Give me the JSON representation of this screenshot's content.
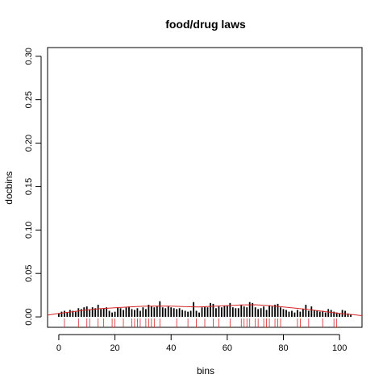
{
  "chart_data": {
    "type": "bar",
    "title": "food/drug laws",
    "xlabel": "bins",
    "ylabel": "docbins",
    "xlim": [
      -4,
      108
    ],
    "ylim": [
      -0.012,
      0.31
    ],
    "xticks": [
      0,
      20,
      40,
      60,
      80,
      100
    ],
    "yticks": [
      0.0,
      0.05,
      0.1,
      0.15,
      0.2,
      0.25,
      0.3
    ],
    "xtick_labels": [
      "0",
      "20",
      "40",
      "60",
      "80",
      "100"
    ],
    "ytick_labels": [
      "0.00",
      "0.05",
      "0.10",
      "0.15",
      "0.20",
      "0.25",
      "0.30"
    ],
    "grid": false,
    "legend": "none",
    "colors": {
      "bars": "#000000",
      "density": "#d62728",
      "rug": "#d62728",
      "axis": "#000000"
    },
    "bars": {
      "x": [
        0,
        1,
        2,
        3,
        4,
        5,
        6,
        7,
        8,
        9,
        10,
        11,
        12,
        13,
        14,
        15,
        16,
        17,
        18,
        19,
        20,
        21,
        22,
        23,
        24,
        25,
        26,
        27,
        28,
        29,
        30,
        31,
        32,
        33,
        34,
        35,
        36,
        37,
        38,
        39,
        40,
        41,
        42,
        43,
        44,
        45,
        46,
        47,
        48,
        49,
        50,
        51,
        52,
        53,
        54,
        55,
        56,
        57,
        58,
        59,
        60,
        61,
        62,
        63,
        64,
        65,
        66,
        67,
        68,
        69,
        70,
        71,
        72,
        73,
        74,
        75,
        76,
        77,
        78,
        79,
        80,
        81,
        82,
        83,
        84,
        85,
        86,
        87,
        88,
        89,
        90,
        91,
        92,
        93,
        94,
        95,
        96,
        97,
        98,
        99,
        100,
        101,
        102,
        103,
        104
      ],
      "values": [
        0.004,
        0.006,
        0.007,
        0.005,
        0.008,
        0.007,
        0.006,
        0.01,
        0.009,
        0.011,
        0.012,
        0.008,
        0.011,
        0.01,
        0.014,
        0.009,
        0.01,
        0.011,
        0.007,
        0.005,
        0.006,
        0.011,
        0.01,
        0.008,
        0.011,
        0.012,
        0.009,
        0.008,
        0.01,
        0.007,
        0.011,
        0.009,
        0.014,
        0.012,
        0.011,
        0.012,
        0.018,
        0.011,
        0.01,
        0.012,
        0.011,
        0.01,
        0.009,
        0.01,
        0.008,
        0.007,
        0.006,
        0.007,
        0.017,
        0.007,
        0.005,
        0.011,
        0.012,
        0.011,
        0.016,
        0.015,
        0.01,
        0.012,
        0.011,
        0.013,
        0.013,
        0.016,
        0.011,
        0.01,
        0.01,
        0.014,
        0.012,
        0.011,
        0.017,
        0.016,
        0.011,
        0.009,
        0.01,
        0.012,
        0.008,
        0.013,
        0.012,
        0.014,
        0.015,
        0.011,
        0.009,
        0.008,
        0.006,
        0.007,
        0.005,
        0.008,
        0.006,
        0.009,
        0.014,
        0.007,
        0.012,
        0.008,
        0.007,
        0.006,
        0.007,
        0.005,
        0.009,
        0.008,
        0.006,
        0.005,
        0.004,
        0.008,
        0.007,
        0.004,
        0.003
      ]
    },
    "density_curve": {
      "x": [
        -4,
        0,
        5,
        10,
        15,
        20,
        25,
        30,
        35,
        40,
        45,
        50,
        55,
        60,
        65,
        70,
        75,
        80,
        85,
        90,
        95,
        100,
        105,
        108
      ],
      "y": [
        0.002,
        0.004,
        0.006,
        0.008,
        0.0095,
        0.0105,
        0.0115,
        0.0122,
        0.0125,
        0.0124,
        0.0118,
        0.0115,
        0.0122,
        0.013,
        0.0138,
        0.014,
        0.013,
        0.0115,
        0.0098,
        0.008,
        0.006,
        0.004,
        0.0025,
        0.0015
      ]
    },
    "rug": [
      2,
      7,
      10,
      11,
      14,
      16,
      19,
      20,
      23,
      26,
      27,
      28,
      29,
      31,
      32,
      33,
      34,
      36,
      42,
      46,
      49,
      52,
      55,
      57,
      61,
      65,
      66,
      67,
      68,
      70,
      71,
      73,
      74,
      75,
      77,
      78,
      79,
      85,
      86,
      89,
      94,
      98,
      99
    ]
  }
}
